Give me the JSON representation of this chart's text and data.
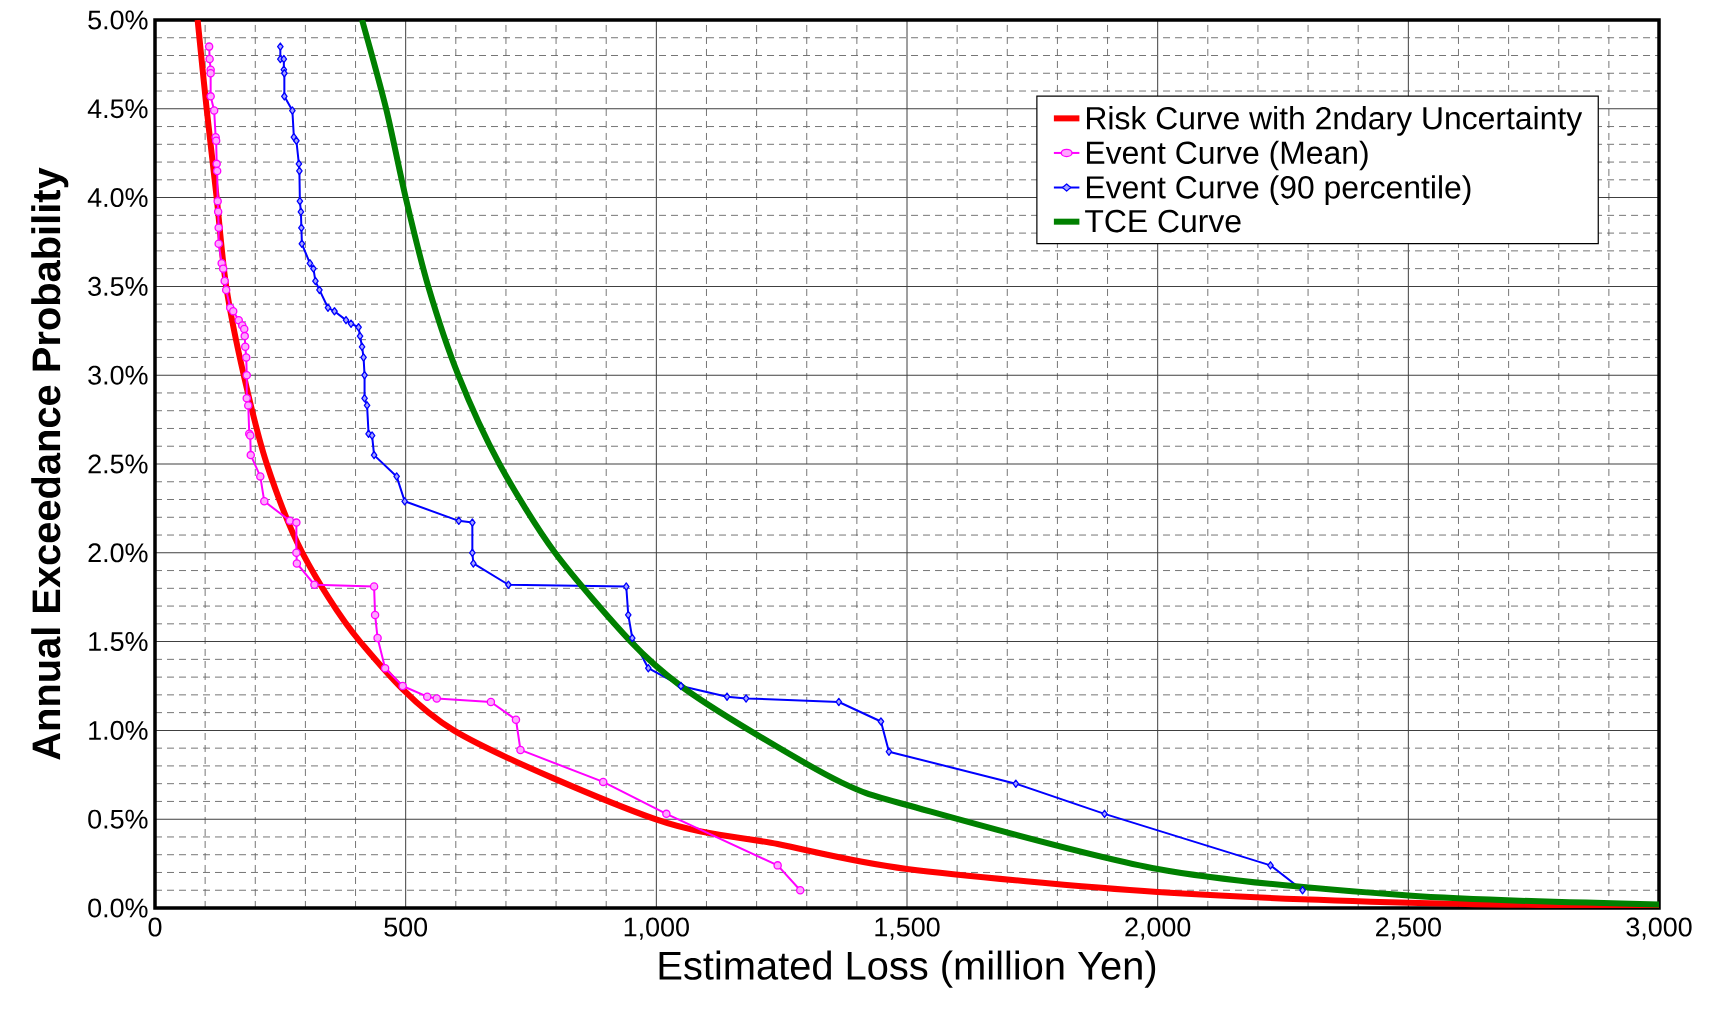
{
  "chart_data": {
    "type": "line",
    "xlabel": "Estimated Loss (million Yen)",
    "ylabel": "Annual Exceedance Probability",
    "xlim": [
      0,
      3000
    ],
    "ylim": [
      0,
      5
    ],
    "xticks": [
      0,
      500,
      {
        "value": 1000,
        "label": "1,000"
      },
      {
        "value": 1500,
        "label": "1,500"
      },
      {
        "value": 2000,
        "label": "2,000"
      },
      {
        "value": 2500,
        "label": "2,500"
      },
      {
        "value": 3000,
        "label": "3,000"
      }
    ],
    "yticks": [
      {
        "value": 0,
        "label": "0.0%"
      },
      {
        "value": 0.5,
        "label": "0.5%"
      },
      {
        "value": 1,
        "label": "1.0%"
      },
      {
        "value": 1.5,
        "label": "1.5%"
      },
      {
        "value": 2,
        "label": "2.0%"
      },
      {
        "value": 2.5,
        "label": "2.5%"
      },
      {
        "value": 3,
        "label": "3.0%"
      },
      {
        "value": 3.5,
        "label": "3.5%"
      },
      {
        "value": 4,
        "label": "4.0%"
      },
      {
        "value": 4.5,
        "label": "4.5%"
      },
      {
        "value": 5,
        "label": "5.0%"
      }
    ],
    "grid": true,
    "legend": "top right",
    "series": [
      {
        "name": "Risk Curve with 2ndary Uncertainty",
        "color": "#ff0000",
        "marker": "none",
        "x": [
          85,
          103,
          123,
          142,
          177,
          223,
          294,
          409,
          596,
          998,
          1242,
          1500,
          2000,
          2500,
          3000
        ],
        "values": [
          5.0,
          4.5,
          4.0,
          3.5,
          3.0,
          2.5,
          2.0,
          1.5,
          1.0,
          0.5,
          0.36,
          0.22,
          0.09,
          0.03,
          0.01
        ]
      },
      {
        "name": "Event Curve (Mean)",
        "color": "#ff00ff",
        "marker": "circle",
        "x": [
          108,
          109,
          111,
          111,
          111,
          118,
          121,
          122,
          123,
          124,
          125,
          126,
          127,
          127,
          133,
          136,
          139,
          142,
          150,
          156,
          167,
          174,
          178,
          179,
          180,
          182,
          183,
          183,
          186,
          188,
          190,
          191,
          210,
          218,
          269,
          282,
          282,
          283,
          318,
          437,
          439,
          444,
          459,
          494,
          543,
          562,
          670,
          720,
          729,
          894,
          1020,
          1242,
          1287
        ],
        "values": [
          4.85,
          4.78,
          4.72,
          4.7,
          4.57,
          4.49,
          4.34,
          4.32,
          4.19,
          4.15,
          3.98,
          3.92,
          3.83,
          3.74,
          3.63,
          3.6,
          3.53,
          3.48,
          3.38,
          3.36,
          3.31,
          3.28,
          3.26,
          3.22,
          3.16,
          3.1,
          3.0,
          2.87,
          2.83,
          2.67,
          2.66,
          2.55,
          2.43,
          2.29,
          2.18,
          2.17,
          2.0,
          1.94,
          1.82,
          1.81,
          1.65,
          1.52,
          1.35,
          1.25,
          1.19,
          1.18,
          1.16,
          1.06,
          0.89,
          0.71,
          0.53,
          0.24,
          0.1
        ]
      },
      {
        "name": "Event Curve (90 percentile)",
        "color": "#0000ff",
        "marker": "diamond",
        "x": [
          250,
          250,
          257,
          257,
          258,
          258,
          274,
          277,
          282,
          287,
          288,
          289,
          291,
          292,
          293,
          309,
          316,
          320,
          328,
          345,
          358,
          381,
          391,
          406,
          409,
          413,
          416,
          418,
          418,
          423,
          426,
          433,
          437,
          482,
          498,
          606,
          633,
          633,
          635,
          705,
          940,
          944,
          952,
          984,
          1049,
          1141,
          1179,
          1364,
          1448,
          1464,
          1717,
          1894,
          2225,
          2289
        ],
        "values": [
          4.85,
          4.78,
          4.78,
          4.72,
          4.7,
          4.57,
          4.49,
          4.34,
          4.32,
          4.19,
          4.15,
          3.98,
          3.92,
          3.83,
          3.74,
          3.63,
          3.6,
          3.53,
          3.48,
          3.38,
          3.36,
          3.31,
          3.29,
          3.27,
          3.22,
          3.16,
          3.1,
          3.0,
          2.87,
          2.83,
          2.67,
          2.66,
          2.55,
          2.43,
          2.29,
          2.18,
          2.17,
          2.0,
          1.94,
          1.82,
          1.81,
          1.65,
          1.52,
          1.35,
          1.25,
          1.19,
          1.18,
          1.16,
          1.05,
          0.88,
          0.7,
          0.53,
          0.24,
          0.1
        ]
      },
      {
        "name": "TCE Curve",
        "color": "#008000",
        "marker": "none",
        "x": [
          413,
          461,
          500,
          545,
          605,
          687,
          798,
          949,
          1049,
          1186,
          1367,
          1500,
          2000,
          2500,
          3000
        ],
        "values": [
          5.0,
          4.5,
          4.0,
          3.5,
          3.0,
          2.5,
          2.0,
          1.5,
          1.25,
          1.0,
          0.71,
          0.58,
          0.22,
          0.07,
          0.02
        ]
      }
    ]
  }
}
